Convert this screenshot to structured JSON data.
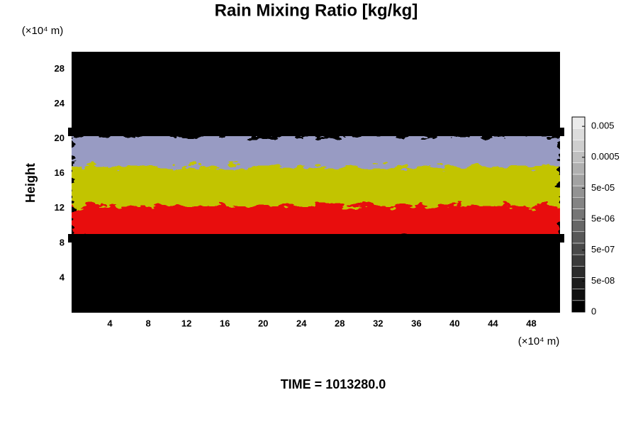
{
  "chart_data": {
    "type": "heatmap",
    "title": "Rain Mixing Ratio [kg/kg]",
    "ylabel": "Height",
    "y_unit": "(×10⁴ m)",
    "x_unit": "(×10⁴ m)",
    "footer": "TIME = 1013280.0",
    "xlim": [
      0,
      51
    ],
    "xticks": [
      4,
      8,
      12,
      16,
      20,
      24,
      28,
      32,
      36,
      40,
      44,
      48
    ],
    "ylim": [
      0,
      30
    ],
    "yticks": [
      4,
      8,
      12,
      16,
      20,
      24,
      28
    ],
    "colorbar": {
      "scale": "log",
      "lim": [
        0,
        0.01
      ],
      "ticks": [
        0,
        {
          "value": 5e-08,
          "label": "5e-08"
        },
        {
          "value": 5e-07,
          "label": "5e-07"
        },
        {
          "value": 5e-06,
          "label": "5e-06"
        },
        {
          "value": 5e-05,
          "label": "5e-05"
        },
        0.0005,
        0.005
      ]
    }
  }
}
